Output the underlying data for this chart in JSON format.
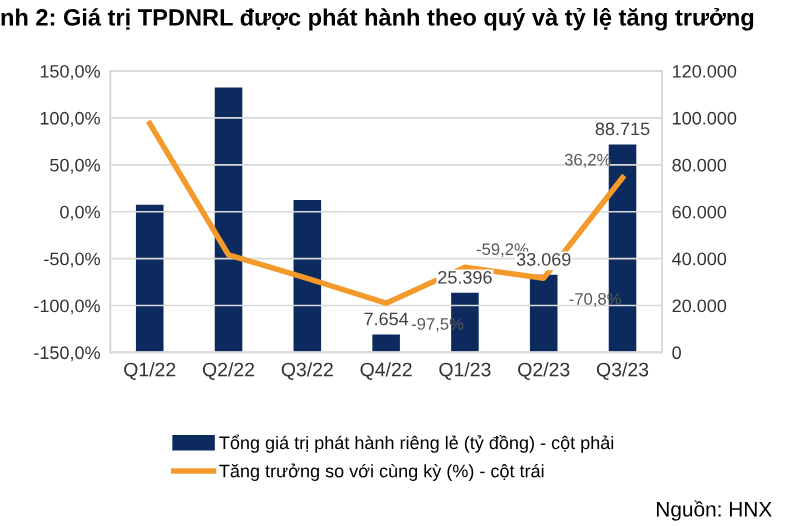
{
  "chart_data": {
    "type": "bar",
    "title": "nh 2: Giá trị TPDNRL được phát hành theo quý và tỷ lệ tăng trưởng",
    "categories": [
      "Q1/22",
      "Q2/22",
      "Q3/22",
      "Q4/22",
      "Q1/23",
      "Q2/23",
      "Q3/23"
    ],
    "series": [
      {
        "name": "Tổng giá trị phát hành riêng lẻ (tỷ đồng) - cột phải",
        "axis": "y2",
        "color": "#0d2a5e",
        "values": [
          63000,
          113000,
          65000,
          7654,
          25396,
          33069,
          88715
        ],
        "value_labels": [
          null,
          null,
          null,
          "7.654",
          "25.396",
          "33.069",
          "88.715"
        ]
      },
      {
        "name": "Tăng trưởng so với cùng kỳ (%) - cột trái",
        "type": "line",
        "axis": "y",
        "color": "#f39a2b",
        "values": [
          94,
          -46,
          -71,
          -97.5,
          -59.2,
          -70.8,
          36.2
        ],
        "value_labels": [
          null,
          null,
          null,
          "-97,5%",
          "-59,2%",
          "-70,8%",
          "36,2%"
        ]
      }
    ],
    "ylim": [
      -150,
      150
    ],
    "yticks": [
      {
        "value": -150,
        "label": "-150,0%"
      },
      {
        "value": -100,
        "label": "-100,0%"
      },
      {
        "value": -50,
        "label": "-50,0%"
      },
      {
        "value": 0,
        "label": "0,0%"
      },
      {
        "value": 50,
        "label": "50,0%"
      },
      {
        "value": 100,
        "label": "100,0%"
      },
      {
        "value": 150,
        "label": "150,0%"
      }
    ],
    "y2lim": [
      0,
      120000
    ],
    "y2ticks": [
      0,
      {
        "value": 20000,
        "label": "20.000"
      },
      {
        "value": 40000,
        "label": "40.000"
      },
      {
        "value": 60000,
        "label": "60.000"
      },
      {
        "value": 80000,
        "label": "80.000"
      },
      {
        "value": 100000,
        "label": "100.000"
      },
      {
        "value": 120000,
        "label": "120.000"
      }
    ],
    "grid": "y",
    "legend": "bottom",
    "marker": "none",
    "line_style": "solid",
    "annotations": [
      "Nguồn: HNX"
    ]
  }
}
